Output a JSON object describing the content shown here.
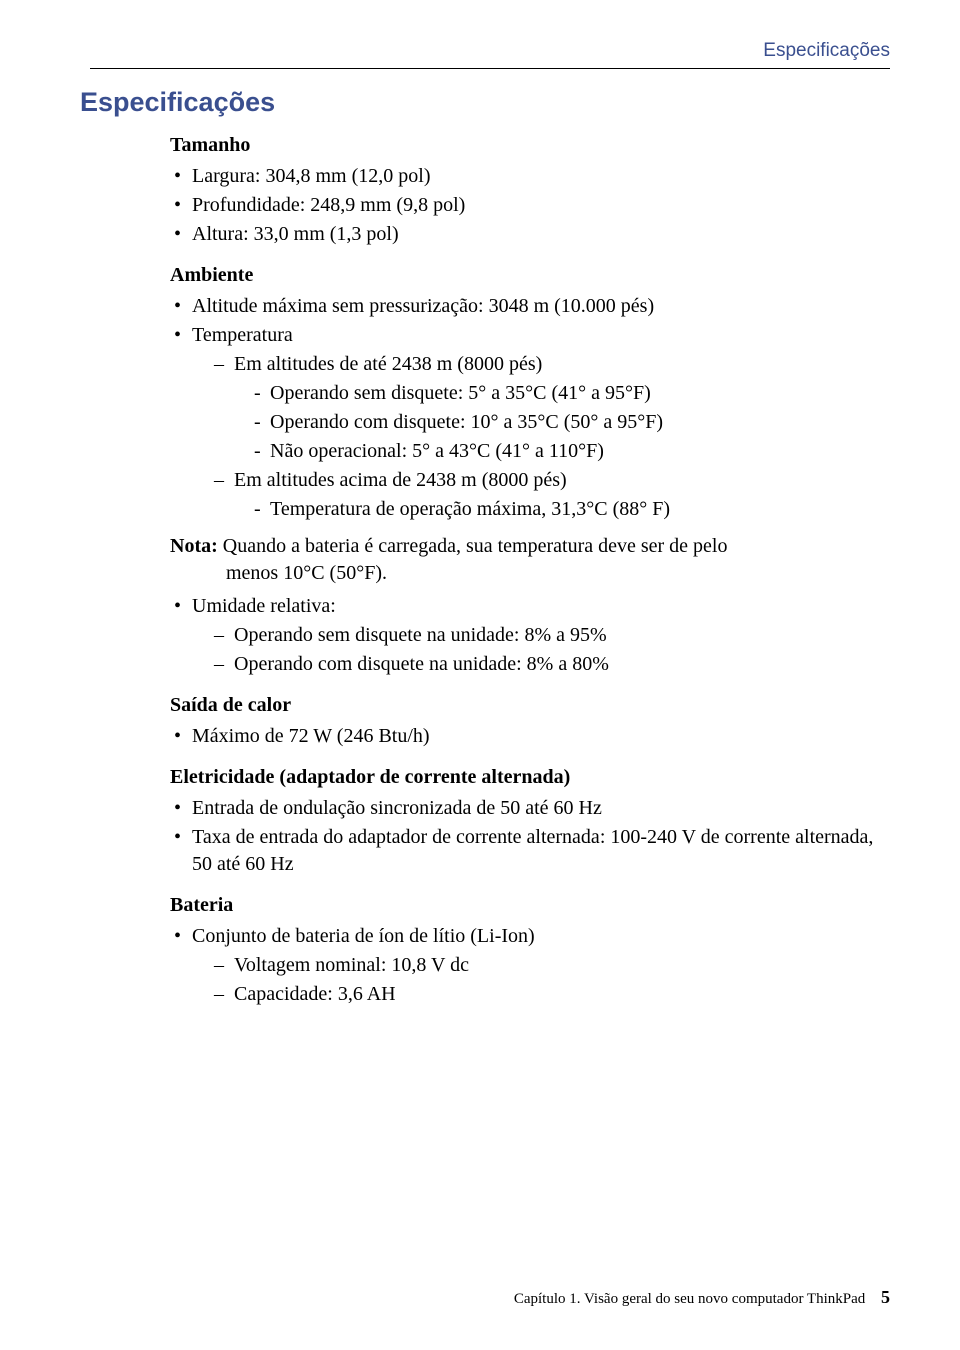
{
  "header": {
    "running_title": "Especificações"
  },
  "title": "Especificações",
  "tamanho": {
    "heading": "Tamanho",
    "items": [
      "Largura: 304,8 mm (12,0 pol)",
      "Profundidade: 248,9 mm (9,8 pol)",
      "Altura: 33,0 mm (1,3 pol)"
    ]
  },
  "ambiente": {
    "heading": "Ambiente",
    "altitude": "Altitude máxima sem pressurização: 3048 m (10.000 pés)",
    "temperatura_label": "Temperatura",
    "group1_label": "Em altitudes de até 2438 m (8000 pés)",
    "group1_items": [
      "Operando sem disquete: 5° a 35°C (41° a 95°F)",
      "Operando com disquete: 10° a 35°C (50° a 95°F)",
      "Não operacional: 5° a 43°C (41° a 110°F)"
    ],
    "group2_label": "Em altitudes acima de 2438 m (8000 pés)",
    "group2_items": [
      "Temperatura de operação máxima, 31,3°C (88° F)"
    ],
    "note_label": "Nota:",
    "note_text_line1": "Quando a bateria é carregada, sua temperatura deve ser de pelo",
    "note_text_line2": "menos 10°C (50°F).",
    "umidade_label": "Umidade relativa:",
    "umidade_items": [
      "Operando sem disquete na unidade: 8% a 95%",
      "Operando com disquete na unidade: 8% a 80%"
    ]
  },
  "saida": {
    "heading": "Saída de calor",
    "items": [
      "Máximo de 72 W (246 Btu/h)"
    ]
  },
  "eletricidade": {
    "heading": "Eletricidade (adaptador de corrente alternada)",
    "items": [
      "Entrada de ondulação sincronizada de 50 até 60 Hz",
      "Taxa de entrada do adaptador de corrente alternada: 100-240 V de corrente alternada, 50 até 60 Hz"
    ]
  },
  "bateria": {
    "heading": "Bateria",
    "bullet": "Conjunto de bateria de íon de lítio (Li-Ion)",
    "subitems": [
      "Voltagem nominal: 10,8 V dc",
      "Capacidade: 3,6 AH"
    ]
  },
  "footer": {
    "text": "Capítulo 1. Visão geral do seu novo computador ThinkPad",
    "page": "5"
  }
}
